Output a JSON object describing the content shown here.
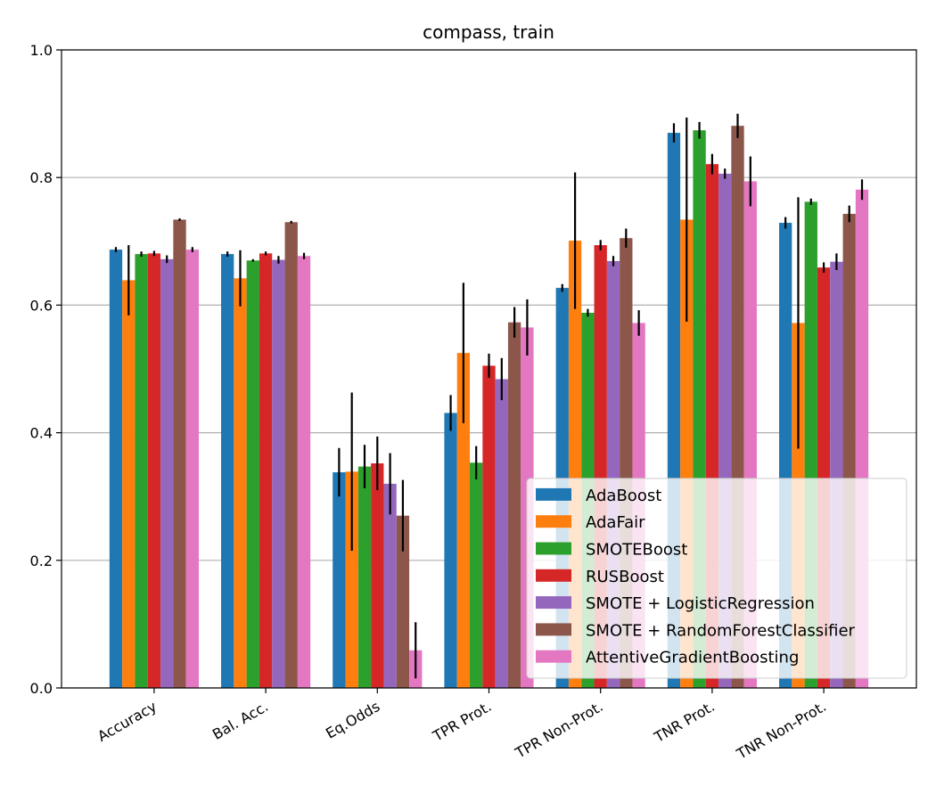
{
  "chart_data": {
    "type": "bar",
    "title": "compass, train",
    "xlabel": "",
    "ylabel": "",
    "ylim": [
      0,
      1.0
    ],
    "yticks": [
      "0.0",
      "0.2",
      "0.4",
      "0.6",
      "0.8",
      "1.0"
    ],
    "grid": "y",
    "legend_position": "lower-right",
    "categories": [
      "Accuracy",
      "Bal. Acc.",
      "Eq.Odds",
      "TPR Prot.",
      "TPR Non-Prot.",
      "TNR Prot.",
      "TNR Non-Prot."
    ],
    "series": [
      {
        "name": "AdaBoost",
        "color": "#1f77b4",
        "values": [
          0.687,
          0.68,
          0.338,
          0.431,
          0.627,
          0.87,
          0.729
        ],
        "errors": [
          0.004,
          0.004,
          0.038,
          0.028,
          0.006,
          0.015,
          0.009
        ]
      },
      {
        "name": "AdaFair",
        "color": "#ff7f0e",
        "values": [
          0.639,
          0.642,
          0.339,
          0.525,
          0.701,
          0.734,
          0.572
        ],
        "errors": [
          0.055,
          0.044,
          0.124,
          0.11,
          0.107,
          0.16,
          0.197
        ]
      },
      {
        "name": "SMOTEBoost",
        "color": "#2ca02c",
        "values": [
          0.68,
          0.67,
          0.347,
          0.353,
          0.588,
          0.874,
          0.762
        ],
        "errors": [
          0.004,
          0.002,
          0.034,
          0.026,
          0.006,
          0.013,
          0.005
        ]
      },
      {
        "name": "RUSBoost",
        "color": "#d62728",
        "values": [
          0.681,
          0.681,
          0.352,
          0.505,
          0.694,
          0.821,
          0.659
        ],
        "errors": [
          0.004,
          0.003,
          0.042,
          0.019,
          0.008,
          0.016,
          0.008
        ]
      },
      {
        "name": "SMOTE + LogisticRegression",
        "color": "#9467bd",
        "values": [
          0.672,
          0.671,
          0.32,
          0.484,
          0.669,
          0.806,
          0.668
        ],
        "errors": [
          0.006,
          0.006,
          0.048,
          0.033,
          0.008,
          0.008,
          0.013
        ]
      },
      {
        "name": "SMOTE + RandomForestClassifier",
        "color": "#8c564b",
        "values": [
          0.734,
          0.73,
          0.27,
          0.573,
          0.705,
          0.881,
          0.743
        ],
        "errors": [
          0.002,
          0.002,
          0.056,
          0.024,
          0.015,
          0.019,
          0.013
        ]
      },
      {
        "name": "AttentiveGradientBoosting",
        "color": "#e377c2",
        "values": [
          0.687,
          0.677,
          0.059,
          0.565,
          0.572,
          0.794,
          0.781
        ],
        "errors": [
          0.004,
          0.005,
          0.044,
          0.044,
          0.02,
          0.039,
          0.016
        ]
      }
    ]
  }
}
